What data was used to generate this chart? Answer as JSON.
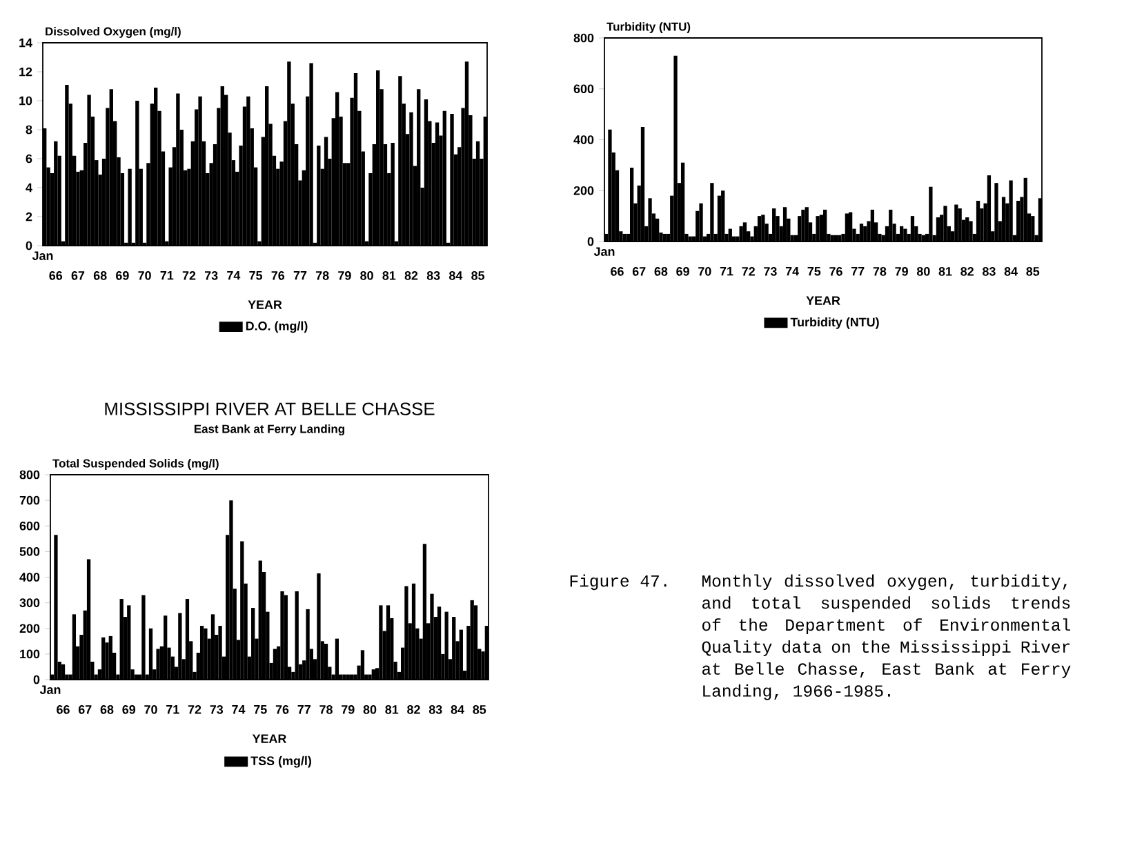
{
  "chart_data": [
    {
      "type": "bar",
      "ylabel": "Dissolved Oxygen (mg/l)",
      "xlabel": "YEAR",
      "annotations": [
        "Jan"
      ],
      "legend": "bottom",
      "ylim": [
        0,
        14
      ],
      "yticks": [
        0,
        2,
        4,
        6,
        8,
        10,
        12,
        14
      ],
      "categories": [
        null,
        null,
        null,
        "66",
        null,
        null,
        null,
        null,
        null,
        "67",
        null,
        null,
        null,
        null,
        null,
        "68",
        null,
        null,
        null,
        null,
        null,
        "69",
        null,
        null,
        null,
        null,
        null,
        "70",
        null,
        null,
        null,
        null,
        null,
        "71",
        null,
        null,
        null,
        null,
        null,
        "72",
        null,
        null,
        null,
        null,
        null,
        "73",
        null,
        null,
        null,
        null,
        null,
        "74",
        null,
        null,
        null,
        null,
        null,
        "75",
        null,
        null,
        null,
        null,
        null,
        "76",
        null,
        null,
        null,
        null,
        null,
        "77",
        null,
        null,
        null,
        null,
        null,
        "78",
        null,
        null,
        null,
        null,
        null,
        "79",
        null,
        null,
        null,
        null,
        null,
        "80",
        null,
        null,
        null,
        null,
        null,
        "81",
        null,
        null,
        null,
        null,
        null,
        "82",
        null,
        null,
        null,
        null,
        null,
        "83",
        null,
        null,
        null,
        null,
        null,
        "84",
        null,
        null,
        null,
        null,
        null,
        "85",
        null,
        null
      ],
      "series": [
        {
          "name": "D.O. (mg/l)",
          "color": "#000000",
          "values": [
            8.1,
            5.4,
            5.0,
            7.2,
            6.2,
            0.3,
            11.1,
            9.8,
            6.2,
            5.1,
            5.2,
            7.1,
            10.4,
            8.9,
            5.9,
            4.9,
            6.0,
            9.5,
            10.8,
            8.6,
            6.1,
            5.0,
            0.2,
            5.3,
            0.2,
            10.0,
            5.3,
            0.2,
            5.7,
            9.8,
            10.9,
            9.3,
            6.5,
            0.3,
            5.4,
            6.8,
            10.5,
            8.0,
            5.2,
            5.3,
            7.2,
            9.4,
            10.3,
            7.2,
            5.0,
            5.7,
            7.0,
            9.5,
            11.0,
            10.4,
            7.8,
            5.9,
            5.1,
            6.9,
            9.6,
            10.3,
            8.1,
            5.4,
            0.3,
            7.5,
            11.0,
            8.4,
            6.2,
            5.3,
            5.8,
            8.6,
            12.7,
            9.8,
            7.0,
            4.5,
            5.2,
            10.3,
            12.6,
            0.2,
            6.9,
            5.3,
            7.5,
            6.0,
            8.8,
            10.6,
            8.9,
            5.7,
            5.7,
            10.2,
            11.9,
            9.3,
            6.5,
            0.3,
            5.0,
            7.0,
            12.1,
            10.8,
            7.0,
            5.0,
            7.1,
            0.3,
            11.7,
            9.8,
            7.7,
            9.2,
            5.5,
            10.8,
            4.0,
            10.1,
            8.6,
            7.1,
            8.5,
            7.6,
            9.3,
            0.2,
            9.1,
            6.3,
            6.8,
            9.5,
            12.7,
            9.0,
            6.0,
            7.2,
            6.0,
            8.9
          ]
        }
      ]
    },
    {
      "type": "bar",
      "ylabel": "Turbidity (NTU)",
      "xlabel": "YEAR",
      "annotations": [
        "Jan"
      ],
      "legend": "bottom",
      "ylim": [
        0,
        800
      ],
      "yticks": [
        0,
        200,
        400,
        600,
        800
      ],
      "categories": [
        null,
        null,
        null,
        "66",
        null,
        null,
        null,
        null,
        null,
        "67",
        null,
        null,
        null,
        null,
        null,
        "68",
        null,
        null,
        null,
        null,
        null,
        "69",
        null,
        null,
        null,
        null,
        null,
        "70",
        null,
        null,
        null,
        null,
        null,
        "71",
        null,
        null,
        null,
        null,
        null,
        "72",
        null,
        null,
        null,
        null,
        null,
        "73",
        null,
        null,
        null,
        null,
        null,
        "74",
        null,
        null,
        null,
        null,
        null,
        "75",
        null,
        null,
        null,
        null,
        null,
        "76",
        null,
        null,
        null,
        null,
        null,
        "77",
        null,
        null,
        null,
        null,
        null,
        "78",
        null,
        null,
        null,
        null,
        null,
        "79",
        null,
        null,
        null,
        null,
        null,
        "80",
        null,
        null,
        null,
        null,
        null,
        "81",
        null,
        null,
        null,
        null,
        null,
        "82",
        null,
        null,
        null,
        null,
        null,
        "83",
        null,
        null,
        null,
        null,
        null,
        "84",
        null,
        null,
        null,
        null,
        null,
        "85",
        null,
        null
      ],
      "series": [
        {
          "name": "Turbidity (NTU)",
          "color": "#000000",
          "values": [
            30,
            440,
            350,
            280,
            40,
            30,
            30,
            290,
            150,
            220,
            450,
            60,
            170,
            110,
            90,
            35,
            30,
            30,
            180,
            730,
            230,
            310,
            30,
            20,
            20,
            120,
            150,
            20,
            30,
            230,
            30,
            180,
            200,
            30,
            50,
            20,
            20,
            60,
            75,
            40,
            20,
            60,
            100,
            105,
            70,
            30,
            130,
            100,
            60,
            135,
            90,
            25,
            25,
            100,
            125,
            135,
            75,
            30,
            100,
            105,
            125,
            30,
            25,
            25,
            25,
            30,
            110,
            115,
            50,
            30,
            70,
            60,
            80,
            125,
            75,
            30,
            25,
            60,
            125,
            70,
            30,
            60,
            50,
            30,
            100,
            60,
            30,
            25,
            30,
            215,
            25,
            95,
            105,
            140,
            60,
            40,
            145,
            130,
            85,
            95,
            80,
            30,
            160,
            130,
            150,
            260,
            40,
            230,
            80,
            175,
            150,
            240,
            25,
            160,
            175,
            250,
            110,
            100,
            25,
            170
          ]
        }
      ]
    },
    {
      "type": "bar",
      "title": "MISSISSIPPI RIVER AT BELLE CHASSE",
      "subtitle": "East Bank at Ferry Landing",
      "ylabel": "Total Suspended Solids (mg/l)",
      "xlabel": "YEAR",
      "annotations": [
        "Jan"
      ],
      "legend": "bottom",
      "ylim": [
        0,
        800
      ],
      "yticks": [
        0,
        100,
        200,
        300,
        400,
        500,
        600,
        700,
        800
      ],
      "categories": [
        null,
        null,
        null,
        "66",
        null,
        null,
        null,
        null,
        null,
        "67",
        null,
        null,
        null,
        null,
        null,
        "68",
        null,
        null,
        null,
        null,
        null,
        "69",
        null,
        null,
        null,
        null,
        null,
        "70",
        null,
        null,
        null,
        null,
        null,
        "71",
        null,
        null,
        null,
        null,
        null,
        "72",
        null,
        null,
        null,
        null,
        null,
        "73",
        null,
        null,
        null,
        null,
        null,
        "74",
        null,
        null,
        null,
        null,
        null,
        "75",
        null,
        null,
        null,
        null,
        null,
        "76",
        null,
        null,
        null,
        null,
        null,
        "77",
        null,
        null,
        null,
        null,
        null,
        "78",
        null,
        null,
        null,
        null,
        null,
        "79",
        null,
        null,
        null,
        null,
        null,
        "80",
        null,
        null,
        null,
        null,
        null,
        "81",
        null,
        null,
        null,
        null,
        null,
        "82",
        null,
        null,
        null,
        null,
        null,
        "83",
        null,
        null,
        null,
        null,
        null,
        "84",
        null,
        null,
        null,
        null,
        null,
        "85",
        null,
        null
      ],
      "series": [
        {
          "name": "TSS (mg/l)",
          "color": "#000000",
          "values": [
            20,
            565,
            70,
            60,
            20,
            20,
            255,
            130,
            175,
            270,
            470,
            70,
            20,
            40,
            165,
            145,
            170,
            105,
            20,
            315,
            245,
            290,
            40,
            20,
            20,
            330,
            20,
            200,
            40,
            120,
            130,
            250,
            125,
            90,
            50,
            260,
            80,
            315,
            150,
            30,
            105,
            210,
            200,
            160,
            255,
            175,
            210,
            90,
            565,
            700,
            355,
            155,
            540,
            375,
            90,
            280,
            160,
            465,
            420,
            265,
            65,
            120,
            130,
            345,
            330,
            50,
            30,
            345,
            60,
            75,
            275,
            120,
            80,
            415,
            150,
            140,
            50,
            20,
            160,
            20,
            20,
            20,
            20,
            20,
            55,
            115,
            20,
            20,
            40,
            45,
            290,
            190,
            290,
            240,
            70,
            30,
            125,
            365,
            220,
            375,
            200,
            160,
            530,
            220,
            335,
            245,
            285,
            100,
            265,
            80,
            245,
            150,
            195,
            35,
            210,
            310,
            290,
            120,
            110,
            210
          ]
        }
      ]
    },
    {
      "type": "other",
      "annotations": [
        "Figure 47.",
        "Monthly dissolved oxygen, turbidity, and total suspended solids trends of the Department of Environmental Quality data on the Mississippi River at Belle Chasse, East Bank at Ferry Landing, 1966-1985."
      ]
    }
  ]
}
